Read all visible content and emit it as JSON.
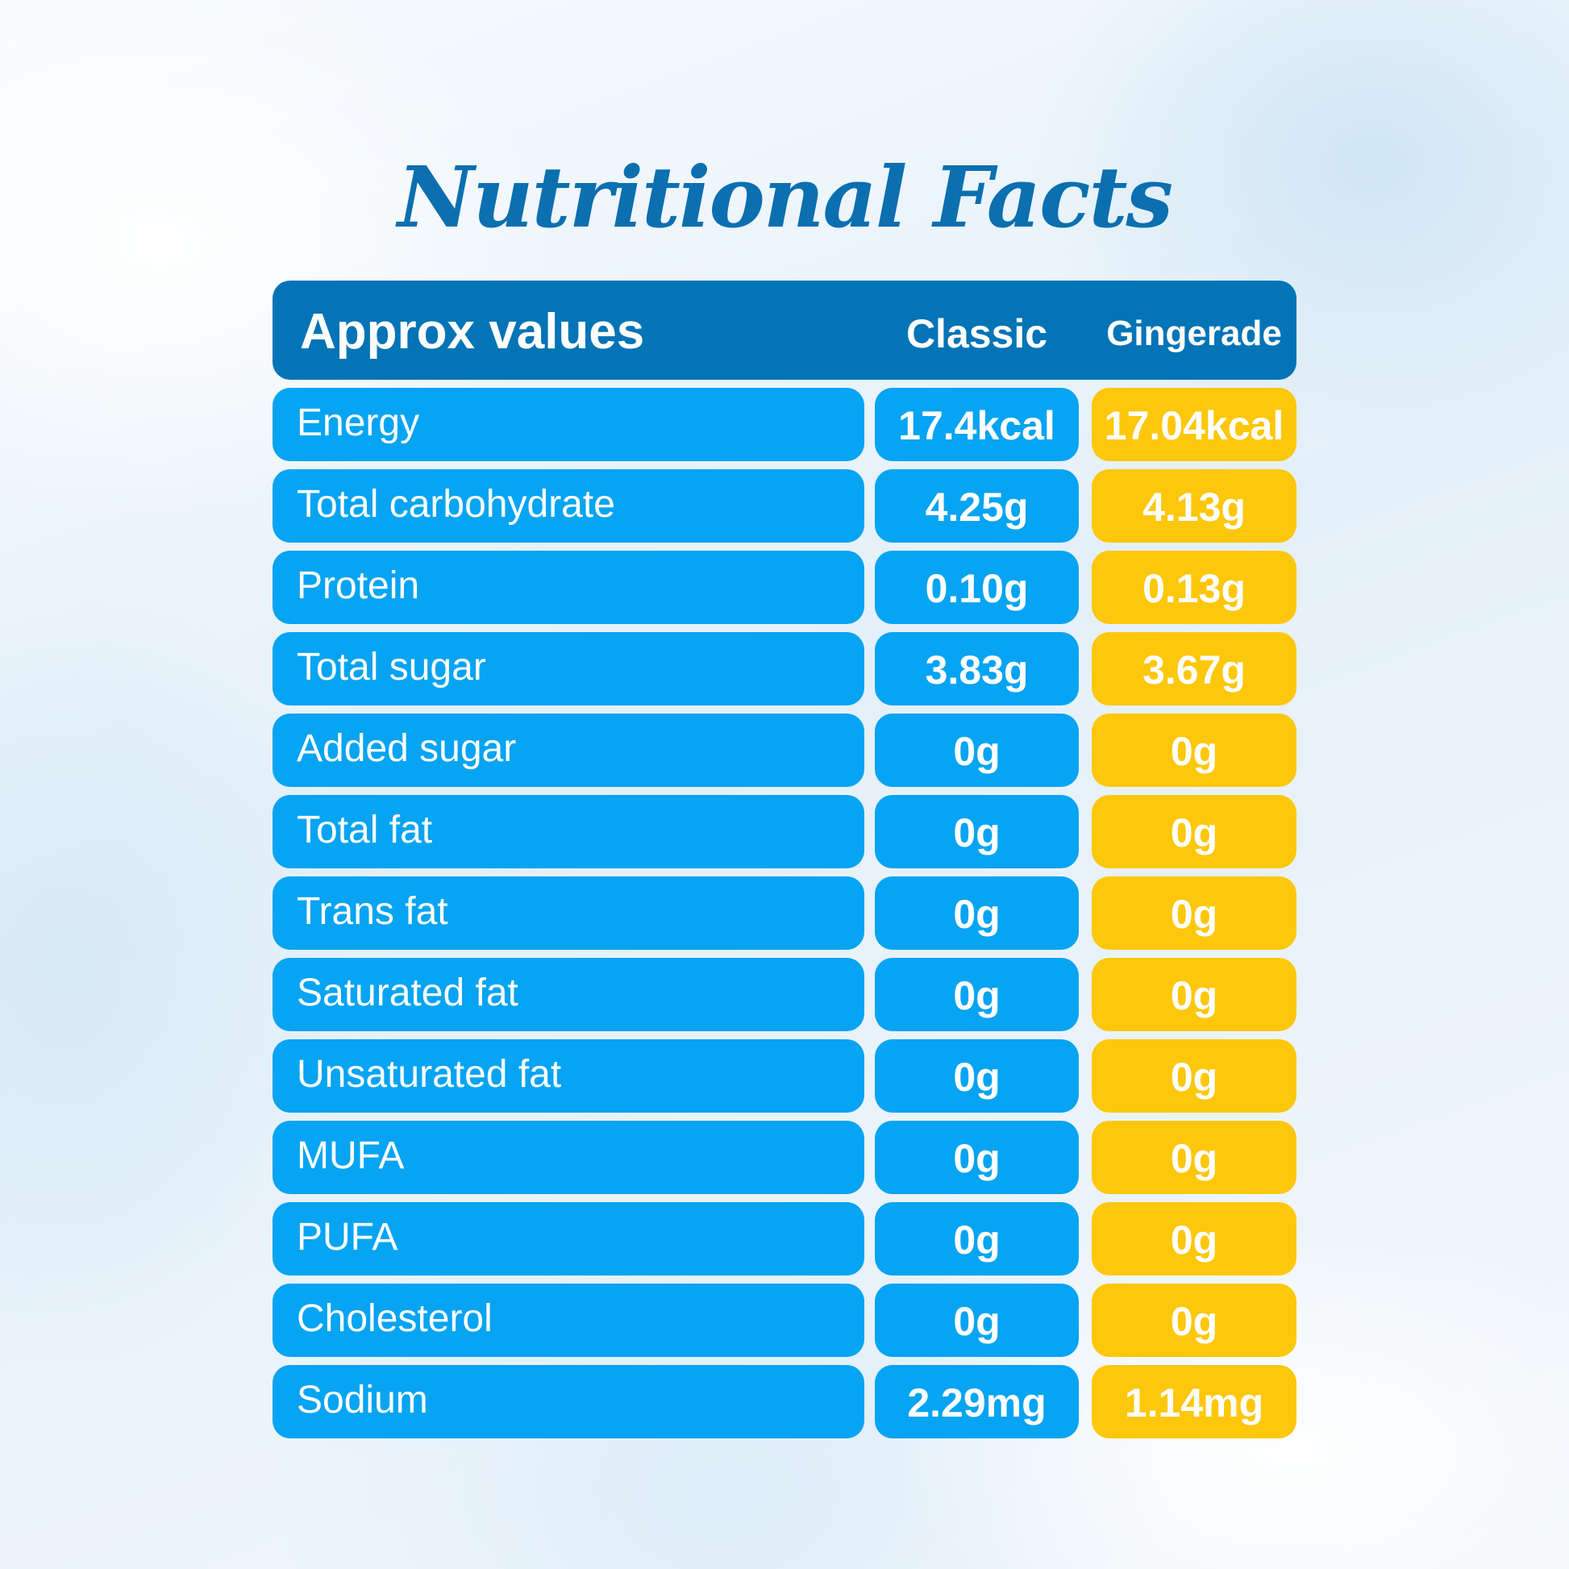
{
  "title": "Nutritional Facts",
  "header": {
    "label": "Approx values",
    "classic": "Classic",
    "gingerade": "Gingerade"
  },
  "colors": {
    "header": "#0374b6",
    "classic": "#06a4f2",
    "gingerade": "#fdc70b",
    "title": "#0b6fb0"
  },
  "rows": [
    {
      "label": "Energy",
      "classic": "17.4kcal",
      "gingerade": "17.04kcal"
    },
    {
      "label": "Total carbohydrate",
      "classic": "4.25g",
      "gingerade": "4.13g"
    },
    {
      "label": "Protein",
      "classic": "0.10g",
      "gingerade": "0.13g"
    },
    {
      "label": "Total sugar",
      "classic": "3.83g",
      "gingerade": "3.67g"
    },
    {
      "label": "Added sugar",
      "classic": "0g",
      "gingerade": "0g"
    },
    {
      "label": "Total fat",
      "classic": "0g",
      "gingerade": "0g"
    },
    {
      "label": "Trans fat",
      "classic": "0g",
      "gingerade": "0g"
    },
    {
      "label": "Saturated fat",
      "classic": "0g",
      "gingerade": "0g"
    },
    {
      "label": "Unsaturated fat",
      "classic": "0g",
      "gingerade": "0g"
    },
    {
      "label": "MUFA",
      "classic": "0g",
      "gingerade": "0g"
    },
    {
      "label": "PUFA",
      "classic": "0g",
      "gingerade": "0g"
    },
    {
      "label": "Cholesterol",
      "classic": "0g",
      "gingerade": "0g"
    },
    {
      "label": "Sodium",
      "classic": "2.29mg",
      "gingerade": "1.14mg"
    }
  ]
}
